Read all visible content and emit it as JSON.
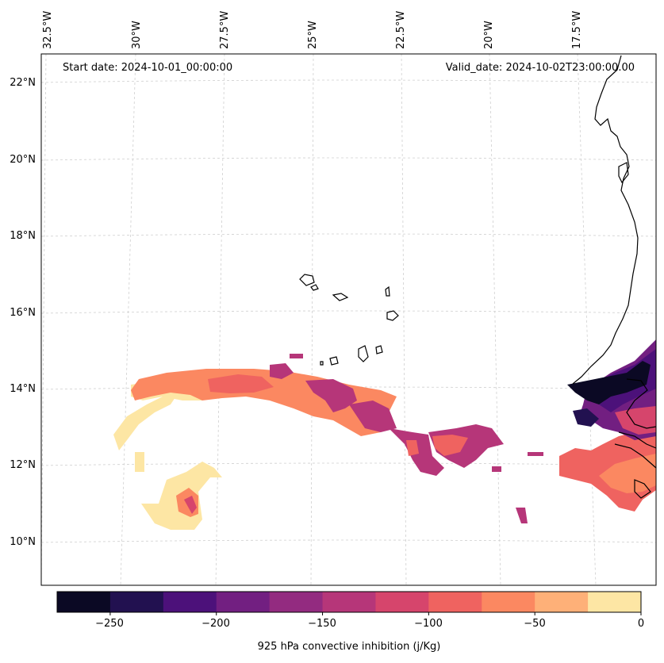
{
  "map": {
    "start_date": "Start date: 2024-10-01_00:00:00",
    "valid_date": "Valid_date: 2024-10-02T23:00:00.00",
    "lon_labels": [
      "32.5°W",
      "30°W",
      "27.5°W",
      "25°W",
      "22.5°W",
      "20°W",
      "17.5°W"
    ],
    "lat_labels": [
      "22°N",
      "20°N",
      "18°N",
      "16°N",
      "14°N",
      "12°N",
      "10°N"
    ],
    "gridlines": true
  },
  "colorbar": {
    "title": "925 hPa convective inhibition (j/Kg)",
    "tick_labels": [
      "−250",
      "−200",
      "−150",
      "−100",
      "−50",
      "0"
    ],
    "levels": [
      -275,
      -250,
      -225,
      -200,
      -175,
      -150,
      -125,
      -100,
      -75,
      -50,
      -25,
      0
    ],
    "colors": [
      "#0b0924",
      "#221150",
      "#4c117a",
      "#721f81",
      "#932b80",
      "#b63679",
      "#d6456c",
      "#ef6360",
      "#fb8861",
      "#feb078",
      "#fde6a4"
    ]
  }
}
